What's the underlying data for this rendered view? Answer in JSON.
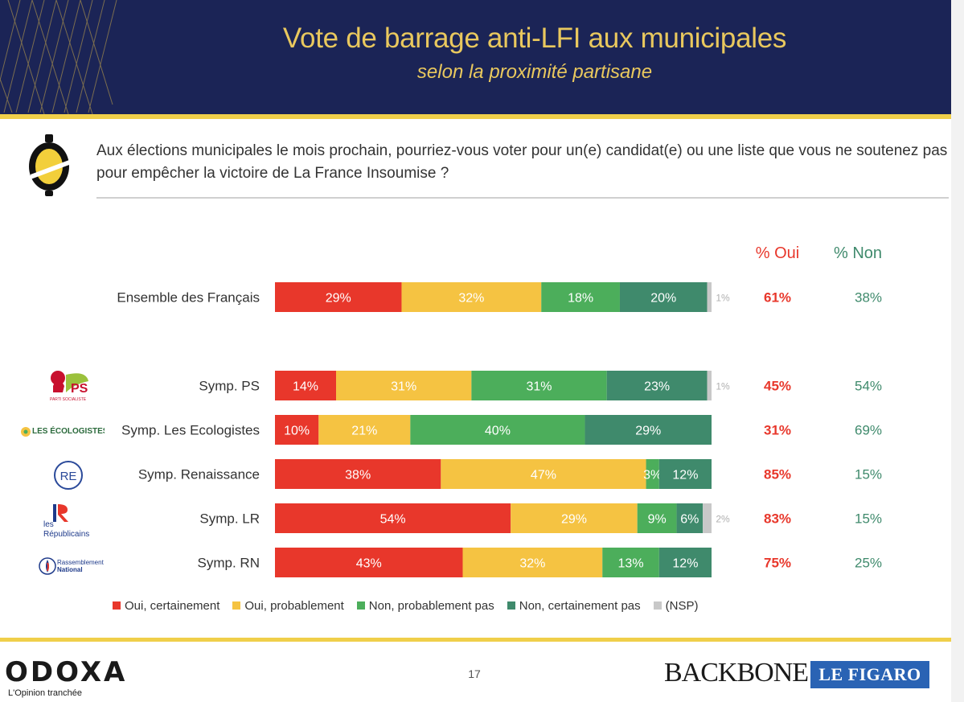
{
  "header": {
    "title": "Vote de barrage anti-LFI aux municipales",
    "subtitle": "selon la proximité partisane"
  },
  "question": "Aux élections municipales le mois prochain, pourriez-vous voter pour un(e) candidat(e) ou une liste que vous ne soutenez pas pour empêcher la victoire de La France Insoumise ?",
  "logos": {
    "ps": "PS",
    "ps_tag": "PARTI SOCIALISTE",
    "ecolo": "LES ÉCOLOGISTES",
    "re": "RE",
    "lr_mark": "LR",
    "lr_les": "les",
    "lr_name": "Républicains",
    "rn_line1": "Rassemblement",
    "rn_line2": "National"
  },
  "colors": {
    "oui_certainement": "#e8372b",
    "oui_probablement": "#f5c342",
    "non_probablement_pas": "#4cae5b",
    "non_certainement_pas": "#3f8a6c",
    "nsp": "#c8c8c8",
    "header_bg": "#1b2456",
    "gold": "#f0cf4a"
  },
  "chart_data": {
    "type": "bar",
    "orientation": "horizontal-stacked-100",
    "title": "Vote de barrage anti-LFI aux municipales",
    "subtitle": "selon la proximité partisane",
    "unit": "%",
    "categories": [
      "Ensemble des Français",
      "Symp. PS",
      "Symp. Les Ecologistes",
      "Symp. Renaissance",
      "Symp. LR",
      "Symp. RN"
    ],
    "series": [
      {
        "name": "Oui, certainement",
        "values": [
          29,
          14,
          10,
          38,
          54,
          43
        ]
      },
      {
        "name": "Oui, probablement",
        "values": [
          32,
          31,
          21,
          47,
          29,
          32
        ]
      },
      {
        "name": "Non, probablement pas",
        "values": [
          18,
          31,
          40,
          3,
          9,
          13
        ]
      },
      {
        "name": "Non, certainement pas",
        "values": [
          20,
          23,
          29,
          12,
          6,
          12
        ]
      },
      {
        "name": "(NSP)",
        "values": [
          1,
          1,
          0,
          0,
          2,
          0
        ]
      }
    ],
    "totals": {
      "oui_label": "% Oui",
      "non_label": "% Non",
      "oui": [
        "61%",
        "45%",
        "31%",
        "85%",
        "83%",
        "75%"
      ],
      "non": [
        "38%",
        "54%",
        "69%",
        "15%",
        "15%",
        "25%"
      ]
    },
    "legend": [
      "Oui, certainement",
      "Oui, probablement",
      "Non, probablement pas",
      "Non, certainement pas",
      "(NSP)"
    ],
    "xlim": [
      0,
      100
    ]
  },
  "footer": {
    "brand": "ODOXA",
    "tagline": "L'Opinion tranchée",
    "page": "17",
    "partner1": "BACKBONE",
    "partner2": "LE FIGARO"
  }
}
